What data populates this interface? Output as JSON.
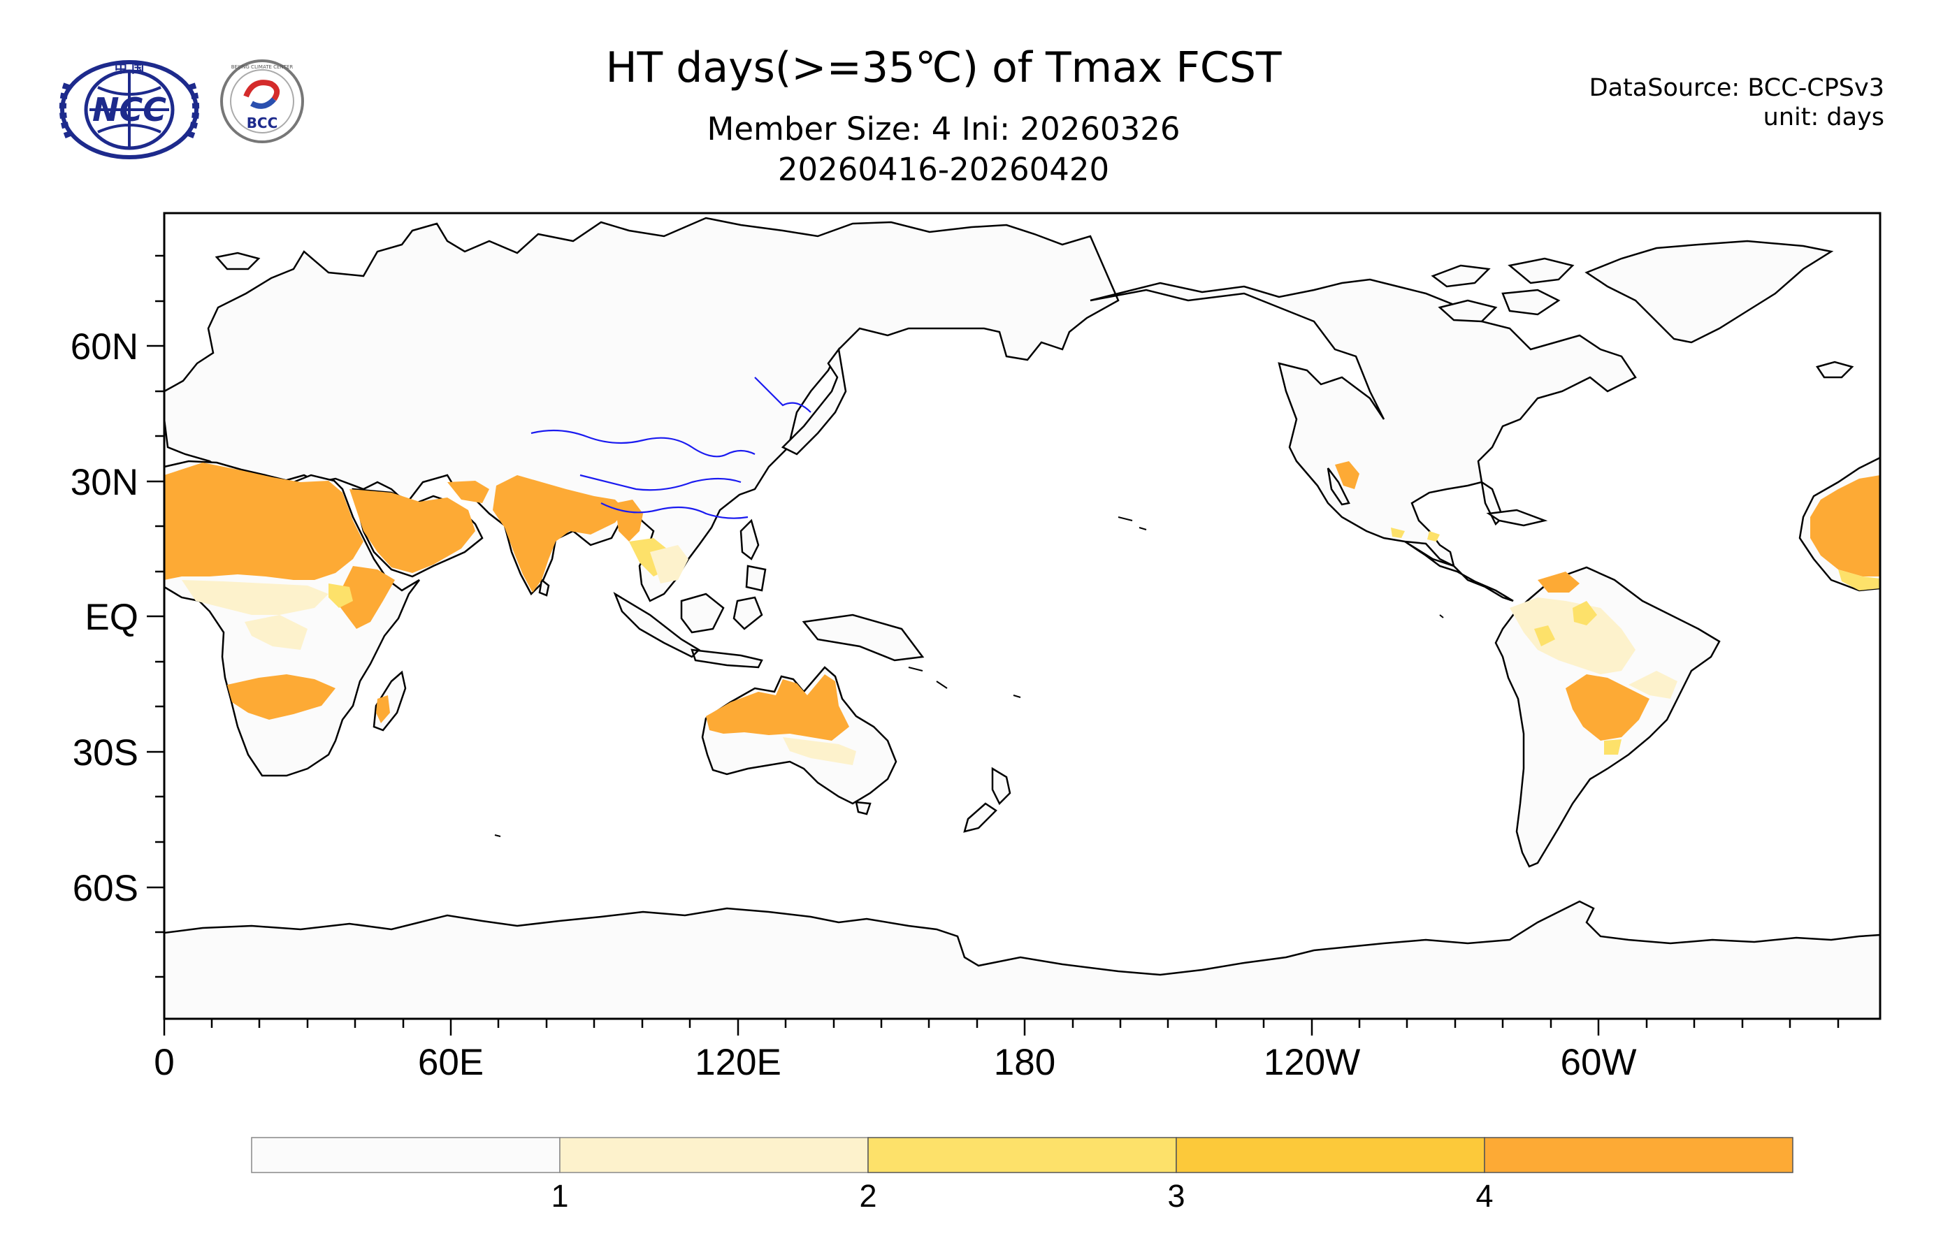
{
  "header": {
    "title": "HT days(>=35℃) of Tmax FCST",
    "subtitle_line1": "Member Size: 4  Ini: 20260326",
    "subtitle_line2": "20260416-20260420",
    "source_line1": "DataSource: BCC-CPSv3",
    "source_line2": "unit: days"
  },
  "logos": {
    "ncc_text": "NCC",
    "ncc_top_text": "中 国",
    "bcc_text": "BCC",
    "bcc_ring_text": "BEIJING CLIMATE CENTER"
  },
  "map": {
    "lat_labels": [
      "60N",
      "30N",
      "EQ",
      "30S",
      "60S"
    ],
    "lon_labels": [
      "0",
      "60E",
      "120E",
      "180",
      "120W",
      "60W"
    ]
  },
  "colorbar": {
    "colors": [
      "#fbfbfb",
      "#fdf2cc",
      "#fde16a",
      "#fcc93a",
      "#fdaa35"
    ],
    "tick_labels": [
      "1",
      "2",
      "3",
      "4"
    ]
  }
}
